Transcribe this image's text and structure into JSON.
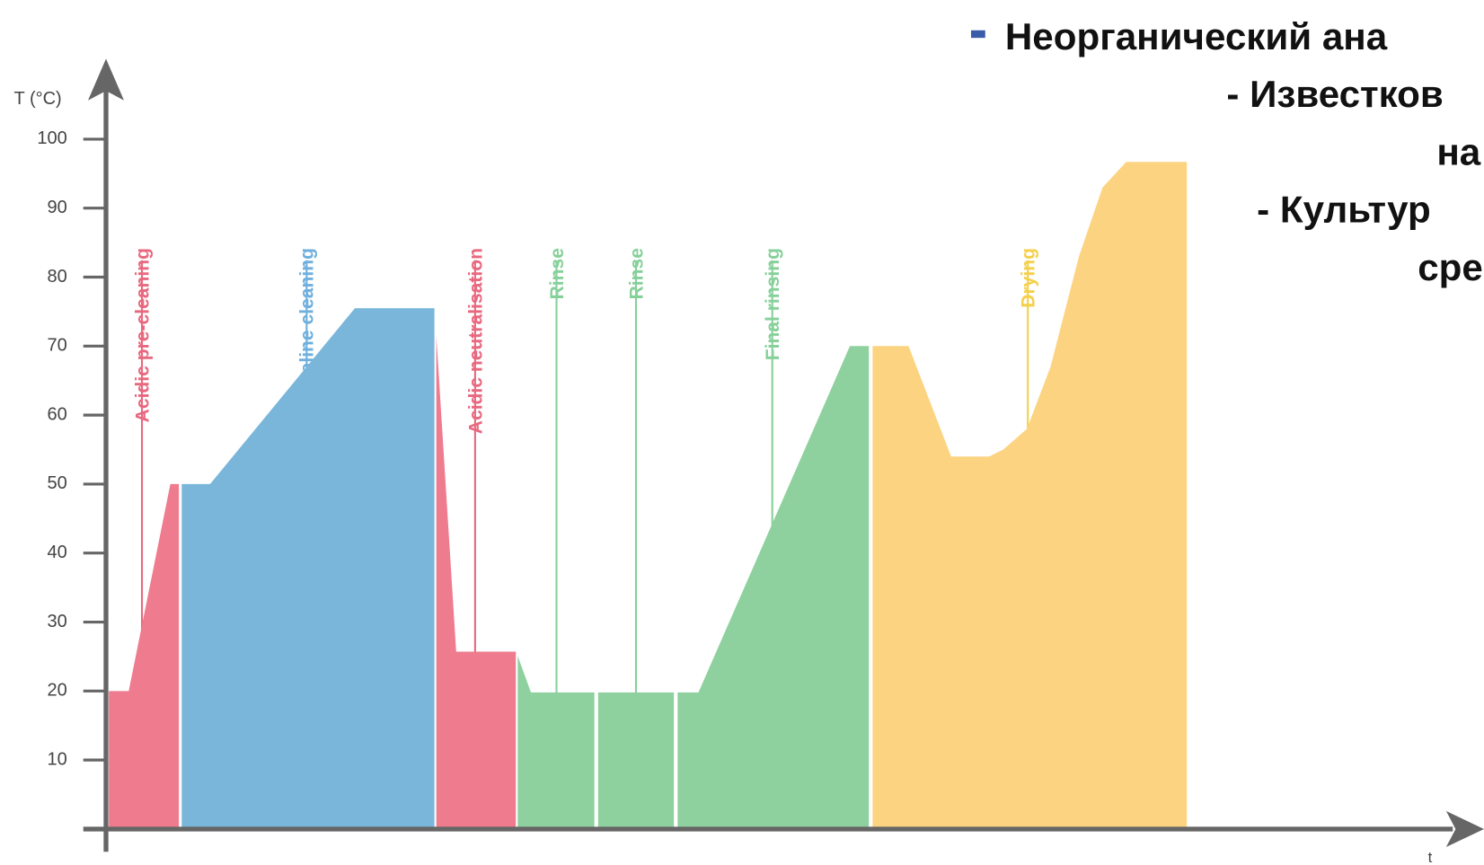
{
  "chart_data": {
    "type": "area",
    "ylabel": "T (°C)",
    "xlabel": "t",
    "ylim": [
      0,
      100
    ],
    "yticks": [
      10,
      20,
      30,
      40,
      50,
      60,
      70,
      80,
      90,
      100
    ],
    "xlim": [
      0,
      145
    ],
    "series": [
      {
        "color": "#ef7b8e",
        "x": [
          0.3,
          2.4,
          6.8,
          7.7
        ],
        "values": [
          20,
          20,
          50,
          50
        ]
      },
      {
        "color": "#79b6da",
        "x": [
          8.0,
          11.0,
          26.3,
          34.7
        ],
        "values": [
          50,
          50,
          75.5,
          75.5
        ]
      },
      {
        "color": "#ef7b8e",
        "x": [
          34.9,
          37.0,
          43.3
        ],
        "values": [
          71.5,
          25.7,
          25.7
        ]
      },
      {
        "color": "#8ed19e",
        "x": [
          43.5,
          44.9,
          51.6
        ],
        "values": [
          25.1,
          19.8,
          19.8
        ]
      },
      {
        "color": "#8ed19e",
        "x": [
          52.0,
          60.0
        ],
        "values": [
          19.8,
          19.8
        ]
      },
      {
        "color": "#8ed19e",
        "x": [
          60.4,
          62.6,
          78.6,
          80.6
        ],
        "values": [
          19.8,
          19.8,
          70,
          70
        ]
      },
      {
        "color": "#fcd481",
        "x": [
          81.0,
          84.8,
          89.3,
          93.3,
          94.8,
          97.3,
          99.8,
          102.8,
          105.3,
          107.8,
          114.2
        ],
        "values": [
          70,
          70,
          54,
          54,
          55,
          58,
          67,
          83,
          93,
          96.7,
          96.7
        ]
      }
    ],
    "phases": [
      {
        "name": "Acidic pre-cleaning",
        "color": "#e8697f",
        "x": 3.8
      },
      {
        "name": "Alkaline cleaning",
        "color": "#6fb0de",
        "x": 21.2
      },
      {
        "name": "Acidic neutralisation",
        "color": "#e8697f",
        "x": 39.0
      },
      {
        "name": "Rinse",
        "color": "#86d09a",
        "x": 47.6
      },
      {
        "name": "Rinse",
        "color": "#86d09a",
        "x": 56.0
      },
      {
        "name": "Final rinsing",
        "color": "#86d09a",
        "x": 70.4
      },
      {
        "name": "Drying",
        "color": "#f5d04a",
        "x": 97.4
      }
    ]
  },
  "overlay": {
    "lines": [
      "Неорганический ана",
      "- Известков",
      "на",
      "- Культур",
      "сре"
    ]
  }
}
